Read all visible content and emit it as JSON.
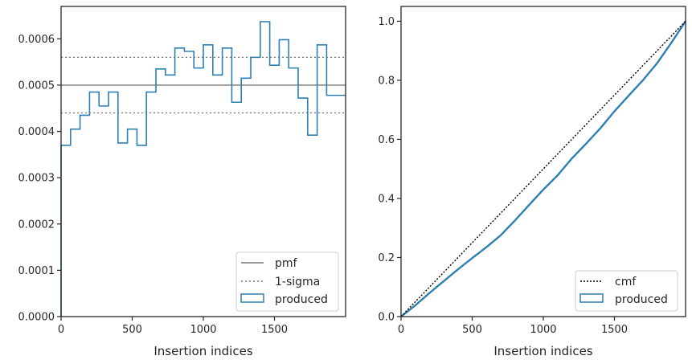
{
  "colors": {
    "produced": "#2f7fb0",
    "pmf": "#777777",
    "sigma": "#777777",
    "cmf": "#000000",
    "axes": "#262626"
  },
  "chart_data": [
    {
      "type": "step-histogram",
      "xlabel": "Insertion indices",
      "ylabel": "",
      "xlim": [
        0,
        2000
      ],
      "ylim": [
        0,
        0.00067
      ],
      "xticks": [
        0,
        500,
        1000,
        1500
      ],
      "yticks": [
        0,
        0.0001,
        0.0002,
        0.0003,
        0.0004,
        0.0005,
        0.0006
      ],
      "ytick_labels": [
        "0.0000",
        "0.0001",
        "0.0002",
        "0.0003",
        "0.0004",
        "0.0005",
        "0.0006"
      ],
      "bin_width": 66.67,
      "produced": [
        0.00037,
        0.000405,
        0.000435,
        0.000485,
        0.000455,
        0.000485,
        0.000375,
        0.000405,
        0.00037,
        0.000485,
        0.000535,
        0.000522,
        0.00058,
        0.000573,
        0.000537,
        0.000587,
        0.000522,
        0.00058,
        0.000463,
        0.000515,
        0.00056,
        0.000637,
        0.000543,
        0.000598,
        0.000537,
        0.000472,
        0.000392,
        0.000587,
        0.000478,
        0.000478
      ],
      "pmf": 0.0005,
      "sigma": [
        0.00044,
        0.00056
      ],
      "legend": [
        "pmf",
        "1-sigma",
        "produced"
      ],
      "legend_position": "lower right"
    },
    {
      "type": "line",
      "xlabel": "Insertion indices",
      "ylabel": "",
      "xlim": [
        0,
        2000
      ],
      "ylim": [
        0,
        1.05
      ],
      "xticks": [
        0,
        500,
        1000,
        1500
      ],
      "yticks": [
        0,
        0.2,
        0.4,
        0.6,
        0.8,
        1.0
      ],
      "ytick_labels": [
        "0.0",
        "0.2",
        "0.4",
        "0.6",
        "0.8",
        "1.0"
      ],
      "cmf": {
        "x": [
          0,
          2000
        ],
        "y": [
          0,
          1.0
        ]
      },
      "produced": {
        "x": [
          0,
          100,
          200,
          300,
          400,
          500,
          600,
          700,
          800,
          900,
          1000,
          1100,
          1200,
          1300,
          1400,
          1500,
          1600,
          1700,
          1800,
          1900,
          2000
        ],
        "y": [
          0,
          0.038,
          0.08,
          0.12,
          0.16,
          0.198,
          0.235,
          0.275,
          0.325,
          0.378,
          0.43,
          0.478,
          0.535,
          0.585,
          0.637,
          0.695,
          0.748,
          0.8,
          0.858,
          0.927,
          1.0
        ]
      },
      "legend": [
        "cmf",
        "produced"
      ],
      "legend_position": "lower right"
    }
  ]
}
